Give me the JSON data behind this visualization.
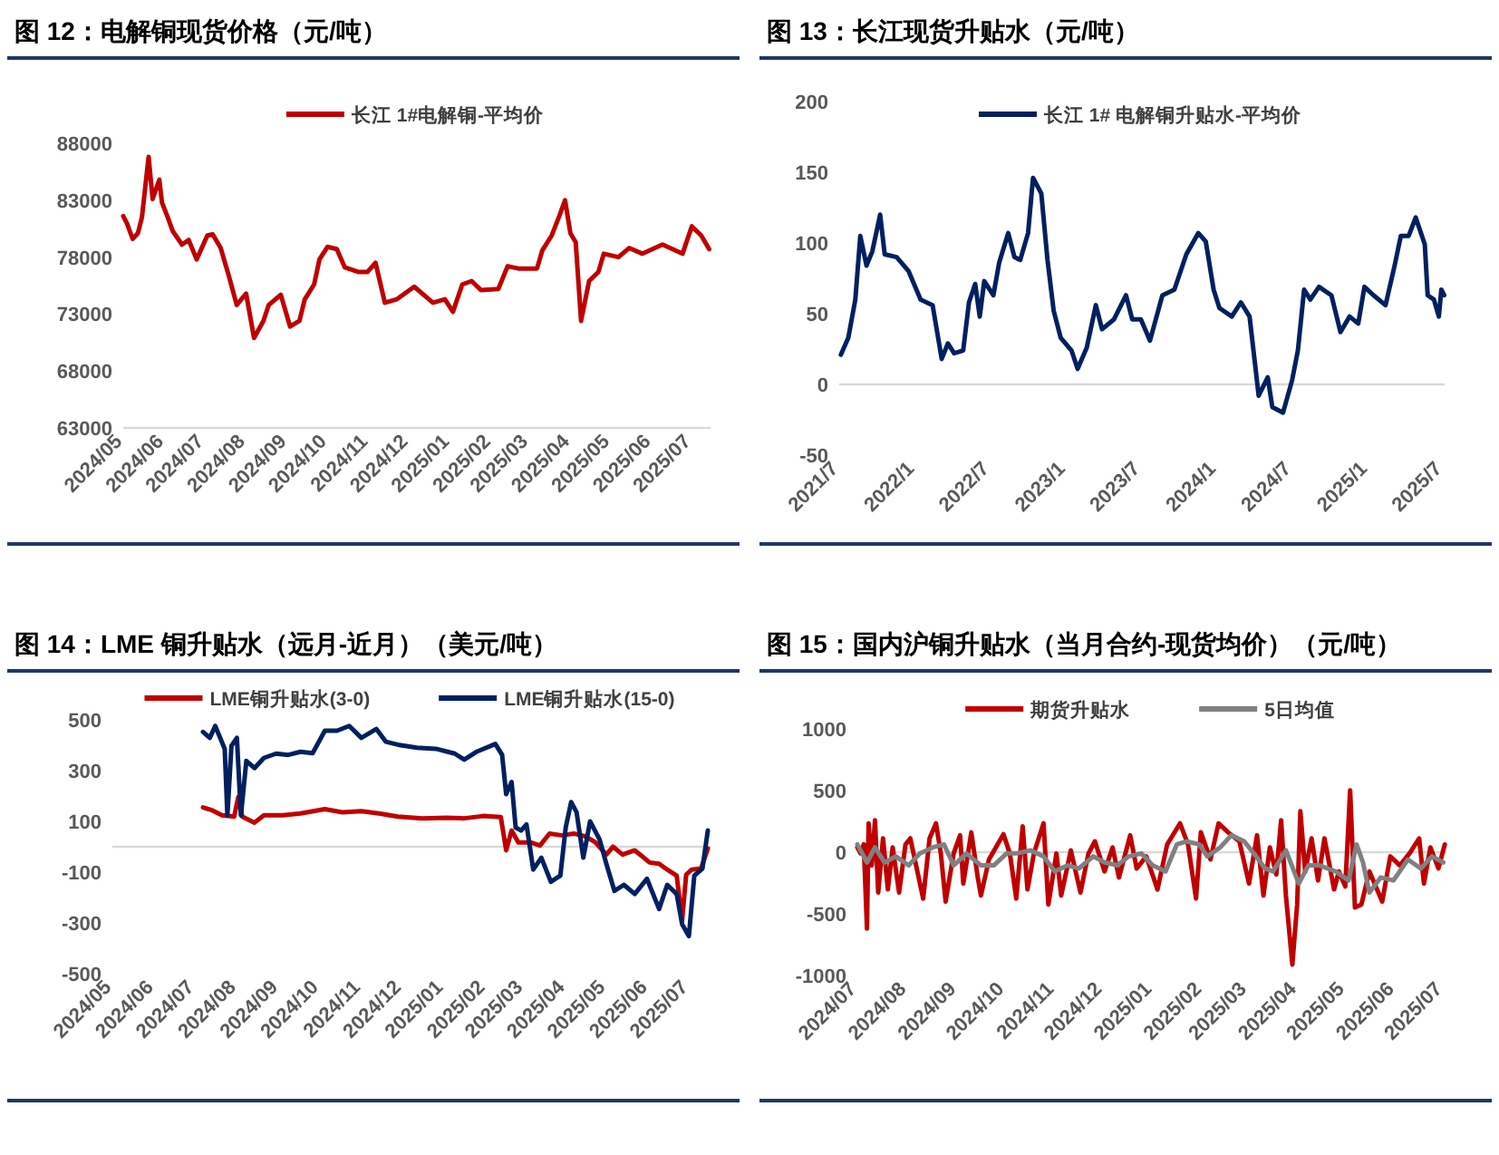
{
  "chart_data": [
    {
      "type": "line",
      "title": "图 12：电解铜现货价格（元/吨）",
      "legend": "top",
      "xlim": [
        "2024-05-01",
        "2025-07-15"
      ],
      "ylim": [
        63000,
        88000
      ],
      "yticks": [
        63000,
        68000,
        73000,
        78000,
        83000,
        88000
      ],
      "xticks": [
        {
          "value": "2024-05-01",
          "label": "2024/05"
        },
        {
          "value": "2024-06-01",
          "label": "2024/06"
        },
        {
          "value": "2024-07-01",
          "label": "2024/07"
        },
        {
          "value": "2024-08-01",
          "label": "2024/08"
        },
        {
          "value": "2024-09-01",
          "label": "2024/09"
        },
        {
          "value": "2024-10-01",
          "label": "2024/10"
        },
        {
          "value": "2024-11-01",
          "label": "2024/11"
        },
        {
          "value": "2024-12-01",
          "label": "2024/12"
        },
        {
          "value": "2025-01-01",
          "label": "2025/01"
        },
        {
          "value": "2025-02-01",
          "label": "2025/02"
        },
        {
          "value": "2025-03-01",
          "label": "2025/03"
        },
        {
          "value": "2025-04-01",
          "label": "2025/04"
        },
        {
          "value": "2025-05-01",
          "label": "2025/05"
        },
        {
          "value": "2025-06-01",
          "label": "2025/06"
        },
        {
          "value": "2025-07-01",
          "label": "2025/07"
        }
      ],
      "x": [
        "2024-05-01",
        "2024-05-04",
        "2024-05-08",
        "2024-05-12",
        "2024-05-15",
        "2024-05-20",
        "2024-05-23",
        "2024-05-28",
        "2024-05-30",
        "2024-06-03",
        "2024-06-07",
        "2024-06-14",
        "2024-06-19",
        "2024-06-25",
        "2024-07-03",
        "2024-07-07",
        "2024-07-13",
        "2024-07-19",
        "2024-07-25",
        "2024-08-01",
        "2024-08-07",
        "2024-08-14",
        "2024-08-18",
        "2024-08-27",
        "2024-09-03",
        "2024-09-10",
        "2024-09-14",
        "2024-09-21",
        "2024-09-25",
        "2024-10-01",
        "2024-10-08",
        "2024-10-14",
        "2024-10-24",
        "2024-10-31",
        "2024-11-06",
        "2024-11-13",
        "2024-11-22",
        "2024-12-05",
        "2024-12-19",
        "2024-12-28",
        "2025-01-03",
        "2025-01-10",
        "2025-01-17",
        "2025-01-24",
        "2025-02-06",
        "2025-02-13",
        "2025-02-21",
        "2025-03-07",
        "2025-03-11",
        "2025-03-18",
        "2025-03-24",
        "2025-03-28",
        "2025-04-01",
        "2025-04-05",
        "2025-04-09",
        "2025-04-15",
        "2025-04-22",
        "2025-04-26",
        "2025-05-07",
        "2025-05-15",
        "2025-05-25",
        "2025-06-09",
        "2025-06-24",
        "2025-07-01",
        "2025-07-08",
        "2025-07-14"
      ],
      "series": [
        {
          "name": "长江 1#电解铜-平均价",
          "color": "#c00000",
          "values": [
            81600,
            80900,
            79600,
            80100,
            81500,
            86800,
            83100,
            84800,
            82800,
            81600,
            80300,
            79100,
            79500,
            77800,
            79900,
            80000,
            78800,
            76400,
            73800,
            74800,
            70900,
            72400,
            73800,
            74700,
            71900,
            72400,
            74300,
            75600,
            77800,
            78900,
            78700,
            77100,
            76700,
            76700,
            77500,
            74000,
            74300,
            75400,
            74000,
            74300,
            73200,
            75600,
            75900,
            75100,
            75200,
            77200,
            77000,
            77000,
            78600,
            79900,
            81700,
            83000,
            80100,
            79300,
            72400,
            75900,
            76700,
            78300,
            78000,
            78800,
            78300,
            79100,
            78300,
            80700,
            79900,
            78700
          ]
        }
      ]
    },
    {
      "type": "line",
      "title": "图 13：长江现货升贴水（元/吨）",
      "legend": "top",
      "xlim": [
        "2021-07-01",
        "2025-07-05"
      ],
      "ylim": [
        -50,
        200
      ],
      "yticks": [
        -50,
        0,
        50,
        100,
        150,
        200
      ],
      "xticks": [
        {
          "value": "2021-07-01",
          "label": "2021/7"
        },
        {
          "value": "2022-01-01",
          "label": "2022/1"
        },
        {
          "value": "2022-07-01",
          "label": "2022/7"
        },
        {
          "value": "2023-01-01",
          "label": "2023/1"
        },
        {
          "value": "2023-07-01",
          "label": "2023/7"
        },
        {
          "value": "2024-01-01",
          "label": "2024/1"
        },
        {
          "value": "2024-07-01",
          "label": "2024/7"
        },
        {
          "value": "2025-01-01",
          "label": "2025/1"
        },
        {
          "value": "2025-07-01",
          "label": "2025/7"
        }
      ],
      "x": [
        "2021-07-05",
        "2021-07-23",
        "2021-08-09",
        "2021-08-21",
        "2021-09-05",
        "2021-09-19",
        "2021-10-08",
        "2021-10-19",
        "2021-11-17",
        "2021-12-16",
        "2022-01-14",
        "2022-02-12",
        "2022-03-06",
        "2022-03-21",
        "2022-04-05",
        "2022-04-27",
        "2022-05-11",
        "2022-05-26",
        "2022-06-06",
        "2022-06-17",
        "2022-07-09",
        "2022-07-23",
        "2022-08-14",
        "2022-08-29",
        "2022-09-12",
        "2022-10-01",
        "2022-10-13",
        "2022-11-02",
        "2022-11-17",
        "2022-12-02",
        "2022-12-19",
        "2023-01-14",
        "2023-01-29",
        "2023-02-20",
        "2023-03-14",
        "2023-03-29",
        "2023-04-27",
        "2023-05-26",
        "2023-06-10",
        "2023-07-01",
        "2023-07-23",
        "2023-08-22",
        "2023-09-20",
        "2023-10-19",
        "2023-11-17",
        "2023-12-05",
        "2023-12-24",
        "2024-01-07",
        "2024-02-06",
        "2024-02-28",
        "2024-03-20",
        "2024-04-11",
        "2024-05-03",
        "2024-05-14",
        "2024-06-09",
        "2024-07-01",
        "2024-07-15",
        "2024-07-30",
        "2024-08-14",
        "2024-09-04",
        "2024-10-04",
        "2024-10-26",
        "2024-11-17",
        "2024-12-08",
        "2024-12-23",
        "2025-01-14",
        "2025-02-12",
        "2025-03-06",
        "2025-03-21",
        "2025-04-09",
        "2025-04-26",
        "2025-05-18",
        "2025-05-25",
        "2025-06-09",
        "2025-06-21",
        "2025-06-27",
        "2025-07-04"
      ],
      "series": [
        {
          "name": "长江 1# 电解铜升贴水-平均价",
          "color": "#002060",
          "values": [
            21,
            33,
            60,
            105,
            84,
            94,
            120,
            92,
            90,
            80,
            60,
            56,
            18,
            29,
            22,
            24,
            58,
            71,
            48,
            73,
            63,
            86,
            107,
            90,
            88,
            107,
            146,
            135,
            88,
            52,
            33,
            24,
            11,
            26,
            56,
            39,
            46,
            63,
            46,
            46,
            31,
            63,
            67,
            92,
            107,
            101,
            67,
            54,
            48,
            58,
            48,
            -8,
            5,
            -16,
            -20,
            3,
            24,
            67,
            60,
            69,
            63,
            37,
            48,
            43,
            69,
            63,
            56,
            84,
            105,
            105,
            118,
            99,
            63,
            60,
            48,
            67,
            63
          ]
        }
      ]
    },
    {
      "type": "line",
      "title": "图 14：LME 铜升贴水（远月-近月）（美元/吨）",
      "legend": "top",
      "xlim": [
        "2024-05-01",
        "2025-07-17"
      ],
      "ylim": [
        -500,
        500
      ],
      "yticks": [
        -500,
        -300,
        -100,
        100,
        300,
        500
      ],
      "xticks": [
        {
          "value": "2024-05-01",
          "label": "2024/05"
        },
        {
          "value": "2024-06-01",
          "label": "2024/06"
        },
        {
          "value": "2024-07-01",
          "label": "2024/07"
        },
        {
          "value": "2024-08-01",
          "label": "2024/08"
        },
        {
          "value": "2024-09-01",
          "label": "2024/09"
        },
        {
          "value": "2024-10-01",
          "label": "2024/10"
        },
        {
          "value": "2024-11-01",
          "label": "2024/11"
        },
        {
          "value": "2024-12-01",
          "label": "2024/12"
        },
        {
          "value": "2025-01-01",
          "label": "2025/01"
        },
        {
          "value": "2025-02-01",
          "label": "2025/02"
        },
        {
          "value": "2025-03-01",
          "label": "2025/03"
        },
        {
          "value": "2025-04-01",
          "label": "2025/04"
        },
        {
          "value": "2025-05-01",
          "label": "2025/05"
        },
        {
          "value": "2025-06-01",
          "label": "2025/06"
        },
        {
          "value": "2025-07-01",
          "label": "2025/07"
        }
      ],
      "series": [
        {
          "name": "LME铜升贴水(3-0)",
          "color": "#c00000",
          "x": [
            "2024-07-07",
            "2024-07-14",
            "2024-07-21",
            "2024-07-30",
            "2024-08-02",
            "2024-08-05",
            "2024-08-14",
            "2024-08-21",
            "2024-09-04",
            "2024-09-17",
            "2024-10-05",
            "2024-10-18",
            "2024-11-01",
            "2024-11-14",
            "2024-11-28",
            "2024-12-16",
            "2025-01-03",
            "2025-01-16",
            "2025-01-30",
            "2025-02-12",
            "2025-02-16",
            "2025-02-20",
            "2025-02-25",
            "2025-03-06",
            "2025-03-13",
            "2025-03-20",
            "2025-03-29",
            "2025-04-07",
            "2025-04-16",
            "2025-04-23",
            "2025-05-01",
            "2025-05-06",
            "2025-05-13",
            "2025-05-22",
            "2025-05-26",
            "2025-06-02",
            "2025-06-09",
            "2025-06-15",
            "2025-06-22",
            "2025-06-26",
            "2025-06-29",
            "2025-07-03",
            "2025-07-10",
            "2025-07-15"
          ],
          "values": [
            155,
            143,
            124,
            119,
            195,
            119,
            95,
            124,
            124,
            131,
            148,
            136,
            140,
            131,
            119,
            112,
            114,
            112,
            121,
            117,
            -14,
            64,
            17,
            17,
            5,
            52,
            45,
            52,
            40,
            17,
            -31,
            0,
            -31,
            -14,
            -31,
            -62,
            -67,
            -90,
            -114,
            -290,
            -110,
            -90,
            -86,
            -7
          ]
        },
        {
          "name": "LME铜升贴水(15-0)",
          "color": "#002060",
          "x": [
            "2024-07-07",
            "2024-07-12",
            "2024-07-16",
            "2024-07-23",
            "2024-07-25",
            "2024-07-28",
            "2024-08-01",
            "2024-08-04",
            "2024-08-08",
            "2024-08-14",
            "2024-08-21",
            "2024-08-30",
            "2024-09-08",
            "2024-09-17",
            "2024-09-26",
            "2024-10-05",
            "2024-10-14",
            "2024-10-23",
            "2024-11-01",
            "2024-11-12",
            "2024-11-19",
            "2024-11-28",
            "2024-12-12",
            "2024-12-26",
            "2025-01-09",
            "2025-01-16",
            "2025-01-25",
            "2025-02-08",
            "2025-02-13",
            "2025-02-16",
            "2025-02-20",
            "2025-02-23",
            "2025-02-27",
            "2025-03-03",
            "2025-03-08",
            "2025-03-14",
            "2025-03-21",
            "2025-03-28",
            "2025-04-01",
            "2025-04-05",
            "2025-04-09",
            "2025-04-14",
            "2025-04-19",
            "2025-04-26",
            "2025-05-01",
            "2025-05-07",
            "2025-05-14",
            "2025-05-22",
            "2025-05-31",
            "2025-06-09",
            "2025-06-15",
            "2025-06-22",
            "2025-06-26",
            "2025-07-01",
            "2025-07-05",
            "2025-07-11",
            "2025-07-15"
          ],
          "values": [
            452,
            429,
            476,
            386,
            124,
            398,
            429,
            124,
            338,
            310,
            350,
            367,
            362,
            374,
            369,
            457,
            457,
            476,
            429,
            464,
            414,
            402,
            390,
            386,
            367,
            343,
            374,
            405,
            362,
            207,
            255,
            76,
            64,
            88,
            -90,
            -43,
            -138,
            -114,
            76,
            176,
            136,
            -43,
            100,
            29,
            -67,
            -174,
            -150,
            -186,
            -126,
            -245,
            -150,
            -186,
            -305,
            -352,
            -114,
            -86,
            64
          ]
        }
      ]
    },
    {
      "type": "line",
      "title": "图 15：国内沪铜升贴水（当月合约-现货均价）（元/吨）",
      "legend": "top",
      "xlim": [
        "2024-07-01",
        "2025-07-03"
      ],
      "ylim": [
        -1000,
        1000
      ],
      "yticks": [
        -1000,
        -500,
        0,
        500,
        1000
      ],
      "xticks": [
        {
          "value": "2024-07-01",
          "label": "2024/07"
        },
        {
          "value": "2024-08-01",
          "label": "2024/08"
        },
        {
          "value": "2024-09-01",
          "label": "2024/09"
        },
        {
          "value": "2024-10-01",
          "label": "2024/10"
        },
        {
          "value": "2024-11-01",
          "label": "2024/11"
        },
        {
          "value": "2024-12-01",
          "label": "2024/12"
        },
        {
          "value": "2025-01-01",
          "label": "2025/01"
        },
        {
          "value": "2025-02-01",
          "label": "2025/02"
        },
        {
          "value": "2025-03-01",
          "label": "2025/03"
        },
        {
          "value": "2025-04-01",
          "label": "2025/04"
        },
        {
          "value": "2025-05-01",
          "label": "2025/05"
        },
        {
          "value": "2025-06-01",
          "label": "2025/06"
        },
        {
          "value": "2025-07-01",
          "label": "2025/07"
        }
      ],
      "series": [
        {
          "name": "期货升贴水",
          "color": "#c00000",
          "x": [
            "2024-07-01",
            "2024-07-03",
            "2024-07-05",
            "2024-07-07",
            "2024-07-08",
            "2024-07-10",
            "2024-07-12",
            "2024-07-14",
            "2024-07-17",
            "2024-07-20",
            "2024-07-23",
            "2024-07-27",
            "2024-07-31",
            "2024-08-03",
            "2024-08-07",
            "2024-08-11",
            "2024-08-15",
            "2024-08-19",
            "2024-08-22",
            "2024-08-25",
            "2024-08-30",
            "2024-09-03",
            "2024-09-05",
            "2024-09-10",
            "2024-09-14",
            "2024-09-16",
            "2024-09-21",
            "2024-09-30",
            "2024-10-04",
            "2024-10-08",
            "2024-10-12",
            "2024-10-15",
            "2024-10-19",
            "2024-10-25",
            "2024-10-28",
            "2024-11-02",
            "2024-11-05",
            "2024-11-11",
            "2024-11-17",
            "2024-11-22",
            "2024-11-26",
            "2024-12-02",
            "2024-12-07",
            "2024-12-11",
            "2024-12-18",
            "2024-12-22",
            "2024-12-28",
            "2025-01-04",
            "2025-01-10",
            "2025-01-18",
            "2025-01-23",
            "2025-01-28",
            "2025-01-31",
            "2025-02-06",
            "2025-02-11",
            "2025-02-17",
            "2025-02-24",
            "2025-03-02",
            "2025-03-07",
            "2025-03-11",
            "2025-03-15",
            "2025-03-19",
            "2025-03-22",
            "2025-03-25",
            "2025-03-29",
            "2025-04-01",
            "2025-04-03",
            "2025-04-06",
            "2025-04-10",
            "2025-04-14",
            "2025-04-18",
            "2025-04-24",
            "2025-04-27",
            "2025-05-01",
            "2025-05-04",
            "2025-05-07",
            "2025-05-11",
            "2025-05-16",
            "2025-05-24",
            "2025-05-29",
            "2025-06-04",
            "2025-06-10",
            "2025-06-16",
            "2025-06-19",
            "2025-06-23",
            "2025-06-28",
            "2025-07-02"
          ],
          "values": [
            40,
            -10,
            63,
            -620,
            234,
            -107,
            259,
            -327,
            112,
            -302,
            39,
            -327,
            63,
            112,
            -132,
            -376,
            112,
            234,
            -10,
            -400,
            -10,
            137,
            -254,
            161,
            -205,
            -351,
            -59,
            146,
            -10,
            -376,
            210,
            -302,
            -10,
            234,
            -424,
            -10,
            -351,
            15,
            -327,
            -10,
            88,
            -156,
            39,
            -205,
            137,
            -132,
            -34,
            -302,
            63,
            234,
            63,
            -376,
            161,
            -59,
            234,
            161,
            88,
            -254,
            137,
            -351,
            39,
            -180,
            259,
            -351,
            -912,
            -424,
            332,
            -156,
            112,
            -229,
            112,
            -302,
            -156,
            -278,
            502,
            -449,
            -424,
            -156,
            -400,
            -34,
            -107,
            -10,
            112,
            -254,
            39,
            -132,
            63
          ]
        },
        {
          "name": "5日均值",
          "color": "#808080",
          "x": [
            "2024-07-01",
            "2024-07-07",
            "2024-07-12",
            "2024-07-18",
            "2024-07-25",
            "2024-08-02",
            "2024-08-09",
            "2024-08-17",
            "2024-08-24",
            "2024-08-30",
            "2024-09-07",
            "2024-09-16",
            "2024-09-24",
            "2024-10-02",
            "2024-10-08",
            "2024-10-17",
            "2024-10-25",
            "2024-11-01",
            "2024-11-09",
            "2024-11-16",
            "2024-11-25",
            "2024-12-02",
            "2024-12-10",
            "2024-12-17",
            "2024-12-25",
            "2025-01-01",
            "2025-01-09",
            "2025-01-16",
            "2025-01-22",
            "2025-01-30",
            "2025-02-04",
            "2025-02-12",
            "2025-02-19",
            "2025-02-27",
            "2025-03-05",
            "2025-03-12",
            "2025-03-17",
            "2025-03-25",
            "2025-04-02",
            "2025-04-08",
            "2025-04-15",
            "2025-04-25",
            "2025-05-03",
            "2025-05-08",
            "2025-05-12",
            "2025-05-16",
            "2025-05-23",
            "2025-05-31",
            "2025-06-09",
            "2025-06-17",
            "2025-06-24",
            "2025-07-01"
          ],
          "values": [
            63,
            -83,
            39,
            -83,
            -34,
            -107,
            -10,
            39,
            63,
            -107,
            -10,
            -107,
            -107,
            -10,
            -10,
            15,
            -34,
            -156,
            -107,
            -132,
            -34,
            -83,
            -107,
            -34,
            -10,
            -107,
            -156,
            63,
            88,
            63,
            -34,
            39,
            137,
            88,
            -10,
            -132,
            -156,
            15,
            -254,
            -107,
            -107,
            -156,
            -229,
            63,
            -83,
            -327,
            -205,
            -229,
            -59,
            -132,
            -34,
            -83
          ]
        }
      ]
    }
  ]
}
